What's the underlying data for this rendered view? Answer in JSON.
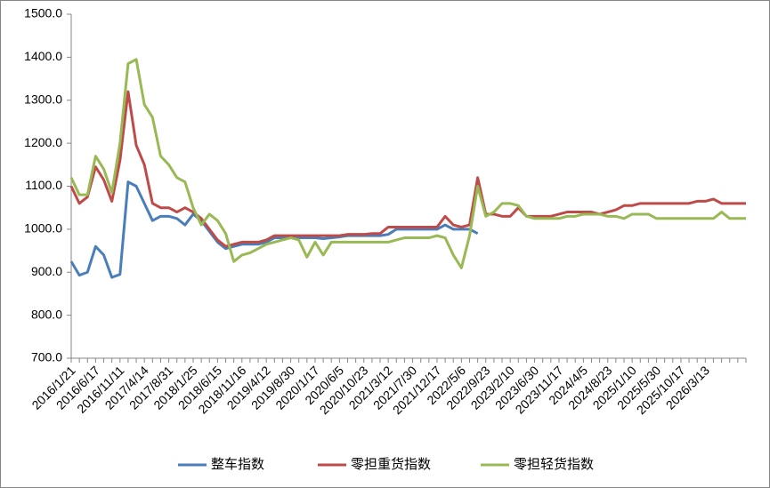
{
  "chart_data": {
    "type": "line",
    "categories": [
      "2016/1/21",
      null,
      null,
      "2016/6/17",
      null,
      null,
      "2016/11/11",
      null,
      null,
      "2017/4/14",
      null,
      null,
      "2017/8/31",
      null,
      null,
      "2018/1/25",
      null,
      null,
      "2018/6/15",
      null,
      null,
      "2018/11/16",
      null,
      null,
      "2019/4/12",
      null,
      null,
      "2019/8/30",
      null,
      null,
      "2020/1/17",
      null,
      null,
      "2020/6/5",
      null,
      null,
      "2020/10/23",
      null,
      null,
      "2021/3/12",
      null,
      null,
      "2021/7/30",
      null,
      null,
      "2021/12/17",
      null,
      null,
      "2022/5/6",
      null,
      null,
      "2022/9/23",
      null,
      null,
      "2023/2/10",
      null,
      null,
      "2023/6/30",
      null,
      null,
      "2023/11/17",
      null,
      null,
      "2024/4/5",
      null,
      null,
      "2024/8/23",
      null,
      null,
      "2025/1/10",
      null,
      null,
      "2025/5/30",
      null,
      null,
      "2025/10/17",
      null,
      null,
      "2026/3/13",
      null,
      null,
      null,
      null,
      null
    ],
    "series": [
      {
        "name": "整车指数",
        "color": "#4a7ebb",
        "values": [
          925,
          893,
          900,
          960,
          940,
          888,
          895,
          1110,
          1100,
          1060,
          1020,
          1030,
          1030,
          1025,
          1010,
          1035,
          1020,
          995,
          970,
          955,
          960,
          965,
          965,
          965,
          970,
          980,
          980,
          980,
          980,
          980,
          980,
          978,
          980,
          982,
          985,
          985,
          985,
          985,
          985,
          988,
          1000,
          1000,
          1000,
          1000,
          1000,
          1000,
          1010,
          1000,
          1000,
          1000,
          990,
          null,
          null,
          null,
          null,
          null,
          null,
          null,
          null,
          null,
          null,
          null,
          null,
          null,
          null,
          null,
          null,
          null,
          null,
          null,
          null,
          null,
          null,
          null,
          null,
          null,
          null,
          null,
          null,
          null,
          null,
          null,
          null,
          null
        ]
      },
      {
        "name": "零担重货指数",
        "color": "#be4b48",
        "values": [
          1100,
          1060,
          1075,
          1145,
          1115,
          1065,
          1160,
          1320,
          1195,
          1150,
          1060,
          1050,
          1050,
          1040,
          1050,
          1040,
          1025,
          1000,
          975,
          960,
          965,
          970,
          970,
          970,
          975,
          985,
          985,
          985,
          985,
          985,
          985,
          985,
          985,
          985,
          988,
          988,
          988,
          990,
          990,
          1005,
          1005,
          1005,
          1005,
          1005,
          1005,
          1005,
          1030,
          1010,
          1005,
          1010,
          1120,
          1035,
          1035,
          1030,
          1030,
          1050,
          1030,
          1030,
          1030,
          1030,
          1035,
          1040,
          1040,
          1040,
          1040,
          1035,
          1040,
          1045,
          1055,
          1055,
          1060,
          1060,
          1060,
          1060,
          1060,
          1060,
          1060,
          1065,
          1065,
          1070,
          1060,
          1060,
          1060,
          1060
        ]
      },
      {
        "name": "零担轻货指数",
        "color": "#98b954",
        "values": [
          1120,
          1080,
          1080,
          1170,
          1140,
          1085,
          1200,
          1385,
          1395,
          1290,
          1260,
          1170,
          1150,
          1120,
          1110,
          1050,
          1010,
          1035,
          1020,
          990,
          925,
          940,
          945,
          955,
          965,
          970,
          975,
          980,
          975,
          935,
          970,
          940,
          970,
          970,
          970,
          970,
          970,
          970,
          970,
          970,
          975,
          980,
          980,
          980,
          980,
          985,
          980,
          940,
          910,
          985,
          1100,
          1030,
          1040,
          1060,
          1060,
          1055,
          1030,
          1025,
          1025,
          1025,
          1025,
          1030,
          1030,
          1035,
          1035,
          1035,
          1030,
          1030,
          1025,
          1035,
          1035,
          1035,
          1025,
          1025,
          1025,
          1025,
          1025,
          1025,
          1025,
          1025,
          1040,
          1025,
          1025,
          1025
        ]
      }
    ],
    "ylim": [
      700,
      1500
    ],
    "yticks": [
      {
        "value": 700,
        "label": "700.0"
      },
      {
        "value": 800,
        "label": "800.0"
      },
      {
        "value": 900,
        "label": "900.0"
      },
      {
        "value": 1000,
        "label": "1000.0"
      },
      {
        "value": 1100,
        "label": "1100.0"
      },
      {
        "value": 1200,
        "label": "1200.0"
      },
      {
        "value": 1300,
        "label": "1300.0"
      },
      {
        "value": 1400,
        "label": "1400.0"
      },
      {
        "value": 1500,
        "label": "1500.0"
      }
    ],
    "grid": false
  }
}
